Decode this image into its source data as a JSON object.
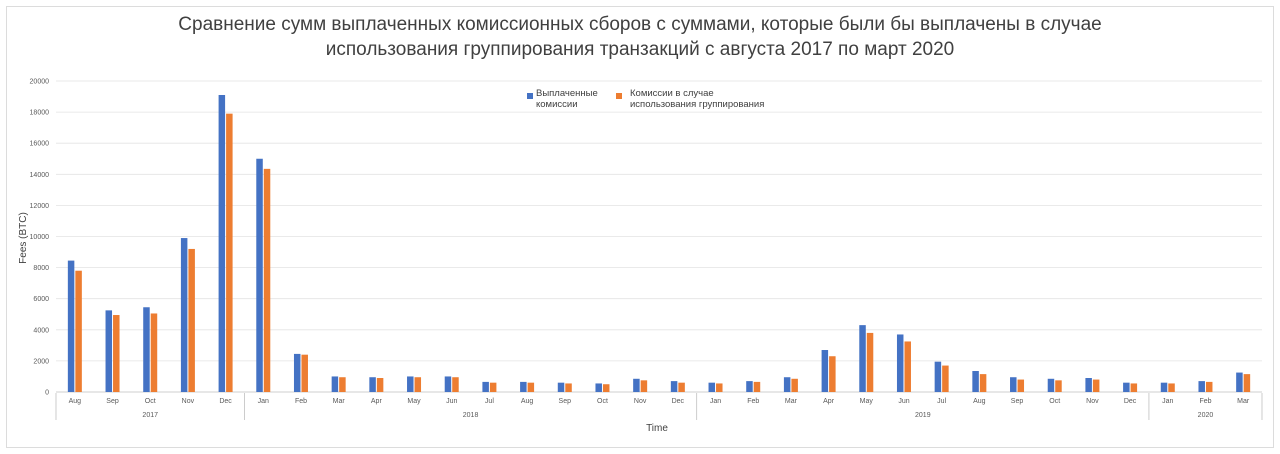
{
  "chart_data": {
    "type": "bar",
    "title_line1": "Сравнение сумм выплаченных комиссионных сборов с суммами, которые были бы выплачены в случае",
    "title_line2": "использования группирования транзакций с августа 2017 по март 2020",
    "xlabel": "Time",
    "ylabel": "Fees (BTC)",
    "ylim": [
      0,
      20000
    ],
    "yticks": [
      "0",
      "2000",
      "4000",
      "6000",
      "8000",
      "10000",
      "12000",
      "14000",
      "16000",
      "18000",
      "20000"
    ],
    "grid": true,
    "legend_position": "top-center",
    "categories": [
      "Aug",
      "Sep",
      "Oct",
      "Nov",
      "Dec",
      "Jan",
      "Feb",
      "Mar",
      "Apr",
      "May",
      "Jun",
      "Jul",
      "Aug",
      "Sep",
      "Oct",
      "Nov",
      "Dec",
      "Jan",
      "Feb",
      "Mar",
      "Apr",
      "May",
      "Jun",
      "Jul",
      "Aug",
      "Sep",
      "Oct",
      "Nov",
      "Dec",
      "Jan",
      "Feb",
      "Mar"
    ],
    "years": [
      {
        "label": "2017",
        "count": 5
      },
      {
        "label": "2018",
        "count": 12
      },
      {
        "label": "2019",
        "count": 12
      },
      {
        "label": "2020",
        "count": 3
      }
    ],
    "series": [
      {
        "name_line1": "Выплаченные",
        "name_line2": "комиссии",
        "color": "#4472C4",
        "values": [
          8450,
          5250,
          5450,
          9900,
          19100,
          15000,
          2450,
          1000,
          950,
          1000,
          1000,
          650,
          650,
          600,
          550,
          850,
          700,
          600,
          700,
          950,
          2700,
          4300,
          3700,
          1950,
          1350,
          950,
          850,
          900,
          600,
          600,
          700,
          1250
        ]
      },
      {
        "name_line1": "Комиссии в случае",
        "name_line2": "использования группирования",
        "color": "#ED7D31",
        "values": [
          7800,
          4950,
          5050,
          9200,
          17900,
          14350,
          2400,
          950,
          900,
          950,
          950,
          600,
          600,
          550,
          500,
          750,
          600,
          550,
          650,
          850,
          2300,
          3800,
          3250,
          1700,
          1150,
          800,
          750,
          800,
          550,
          550,
          650,
          1150
        ]
      }
    ]
  }
}
